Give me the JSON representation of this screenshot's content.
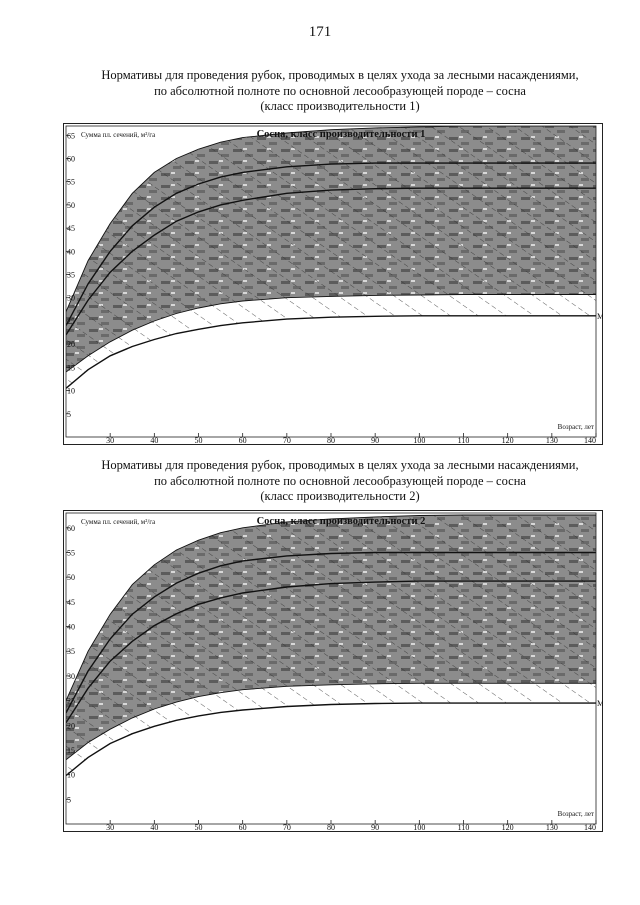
{
  "page": {
    "number": "171"
  },
  "sections": [
    {
      "heading_lines": [
        "Нормативы для проведения рубок, проводимых в целях ухода за лесными насаждениями,",
        "по абсолютной полноте по основной лесообразующей породе – сосна",
        "(класс производительности 1)"
      ]
    },
    {
      "heading_lines": [
        "Нормативы для проведения рубок, проводимых в целях ухода за лесными насаждениями,",
        "по абсолютной полноте по основной лесообразующей породе – сосна",
        "(класс производительности 2)"
      ]
    }
  ],
  "chart_data": [
    {
      "type": "area",
      "title": "Сосна, класс производительности 1",
      "ylabel": "Сумма пл. сечений, м²/га",
      "xlabel": "Возраст, лет",
      "xlim": [
        20,
        140
      ],
      "ylim": [
        0,
        67
      ],
      "x_ticks": [
        30,
        40,
        50,
        60,
        70,
        80,
        90,
        100,
        110,
        120,
        130,
        140
      ],
      "y_ticks": [
        5,
        10,
        15,
        20,
        25,
        30,
        35,
        40,
        45,
        50,
        55,
        60,
        65
      ],
      "x": [
        20,
        25,
        30,
        35,
        40,
        45,
        50,
        55,
        60,
        70,
        80,
        90,
        100,
        110,
        120,
        130,
        140
      ],
      "series": [
        {
          "role": "upper_boundary",
          "values": [
            27.0,
            38.0,
            46.0,
            52.5,
            57.0,
            60.0,
            62.0,
            63.5,
            64.5,
            65.5,
            66.2,
            66.6,
            66.8,
            67.0,
            67.0,
            67.0,
            67.0
          ]
        },
        {
          "role": "upper_line",
          "values": [
            24.0,
            33.0,
            40.0,
            45.5,
            49.5,
            52.5,
            54.5,
            56.0,
            57.0,
            58.2,
            58.8,
            59.0,
            59.0,
            59.0,
            59.0,
            59.0,
            59.0
          ]
        },
        {
          "role": "middle_line",
          "values": [
            22.0,
            29.5,
            35.5,
            40.0,
            43.5,
            46.5,
            48.5,
            50.0,
            51.0,
            52.5,
            53.2,
            53.5,
            53.6,
            53.6,
            53.6,
            53.6,
            53.6
          ]
        },
        {
          "role": "shade_lower_boundary",
          "values": [
            14.0,
            17.5,
            20.5,
            23.0,
            25.0,
            26.6,
            27.8,
            28.7,
            29.3,
            30.0,
            30.3,
            30.5,
            30.6,
            30.7,
            30.7,
            30.7,
            30.7
          ]
        },
        {
          "name": "M",
          "role": "M_line",
          "values": [
            10.5,
            14.5,
            17.5,
            19.5,
            21.0,
            22.3,
            23.2,
            24.0,
            24.6,
            25.4,
            25.8,
            26.0,
            26.1,
            26.1,
            26.1,
            26.1,
            26.1
          ]
        }
      ]
    },
    {
      "type": "area",
      "title": "Сосна, класс производительности 2",
      "ylabel": "Сумма пл. сечений, м²/га",
      "xlabel": "Возраст, лет",
      "xlim": [
        20,
        140
      ],
      "ylim": [
        0,
        63
      ],
      "x_ticks": [
        30,
        40,
        50,
        60,
        70,
        80,
        90,
        100,
        110,
        120,
        130,
        140
      ],
      "y_ticks": [
        5,
        10,
        15,
        20,
        25,
        30,
        35,
        40,
        45,
        50,
        55,
        60
      ],
      "x": [
        20,
        25,
        30,
        35,
        40,
        45,
        50,
        55,
        60,
        70,
        80,
        90,
        100,
        110,
        120,
        130,
        140
      ],
      "series": [
        {
          "role": "upper_boundary",
          "values": [
            25.0,
            35.0,
            42.5,
            48.5,
            52.5,
            55.5,
            57.5,
            59.0,
            60.0,
            61.2,
            61.8,
            62.2,
            62.5,
            62.6,
            62.6,
            62.6,
            62.6
          ]
        },
        {
          "role": "upper_line",
          "values": [
            22.5,
            31.0,
            37.5,
            42.5,
            46.0,
            48.8,
            50.8,
            52.3,
            53.3,
            54.3,
            54.8,
            55.0,
            55.0,
            55.0,
            55.0,
            55.0,
            55.0
          ]
        },
        {
          "role": "middle_line",
          "values": [
            20.5,
            27.5,
            33.0,
            37.0,
            40.2,
            42.6,
            44.5,
            45.8,
            46.8,
            48.0,
            48.7,
            49.0,
            49.2,
            49.2,
            49.2,
            49.2,
            49.2
          ]
        },
        {
          "role": "shade_lower_boundary",
          "values": [
            13.0,
            16.5,
            19.2,
            21.5,
            23.3,
            24.7,
            25.8,
            26.6,
            27.2,
            27.9,
            28.2,
            28.4,
            28.5,
            28.5,
            28.5,
            28.5,
            28.5
          ]
        },
        {
          "name": "M",
          "role": "M_line",
          "values": [
            9.8,
            13.5,
            16.3,
            18.3,
            19.8,
            21.0,
            21.9,
            22.6,
            23.1,
            23.8,
            24.2,
            24.4,
            24.5,
            24.5,
            24.5,
            24.5,
            24.5
          ]
        }
      ]
    }
  ]
}
